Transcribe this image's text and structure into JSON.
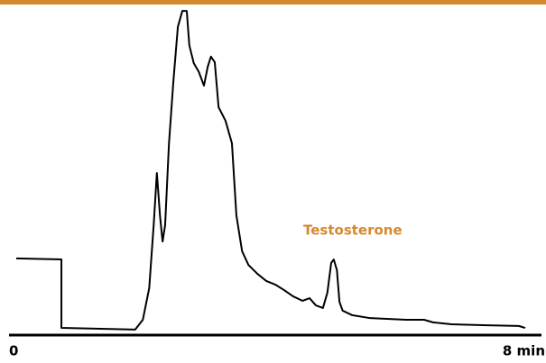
{
  "chart_data": {
    "type": "line",
    "annotation": "Testosterone",
    "xlim": [
      0,
      8
    ],
    "xticks": [
      {
        "value": 0,
        "label": "0"
      },
      {
        "value": 8,
        "label": "8 min"
      }
    ],
    "ylim": [
      0,
      100
    ],
    "series": [
      {
        "color": "#000000",
        "x": [
          0,
          0.71,
          0.71,
          1.87,
          1.99,
          2.09,
          2.16,
          2.21,
          2.26,
          2.3,
          2.34,
          2.4,
          2.47,
          2.54,
          2.61,
          2.68,
          2.72,
          2.79,
          2.87,
          2.95,
          3.01,
          3.06,
          3.12,
          3.18,
          3.29,
          3.39,
          3.46,
          3.55,
          3.65,
          3.79,
          3.93,
          4.07,
          4.21,
          4.35,
          4.5,
          4.61,
          4.71,
          4.82,
          4.89,
          4.95,
          4.99,
          5.04,
          5.08,
          5.13,
          5.28,
          5.56,
          6.13,
          6.41,
          6.55,
          6.84,
          7.4,
          7.9,
          8.0
        ],
        "values": [
          23.5,
          23.2,
          2.2,
          1.7,
          4.7,
          14.4,
          33.7,
          49.7,
          36.5,
          28.7,
          33.7,
          58.6,
          77.9,
          94.5,
          99.4,
          99.4,
          88.9,
          83.4,
          80.7,
          76.5,
          82.3,
          85.4,
          83.7,
          69.9,
          65.7,
          58.8,
          36.7,
          25.7,
          21.5,
          18.8,
          16.6,
          15.5,
          13.8,
          11.9,
          10.5,
          11.3,
          9.1,
          8.3,
          13.0,
          22.1,
          23.2,
          19.9,
          10.2,
          7.5,
          6.1,
          5.2,
          4.7,
          4.7,
          3.9,
          3.3,
          3.0,
          2.8,
          2.2
        ]
      }
    ]
  }
}
